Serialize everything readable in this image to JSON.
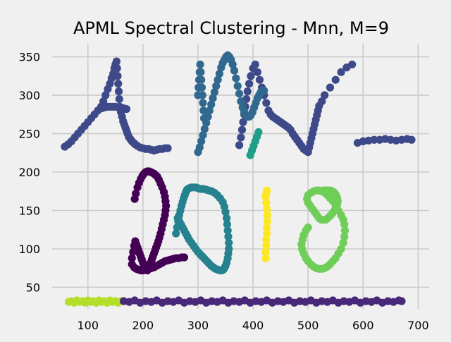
{
  "chart_data": {
    "type": "scatter",
    "title": "APML Spectral Clustering - Mnn, M=9",
    "xlabel": "",
    "ylabel": "",
    "xlim": [
      35,
      720
    ],
    "ylim": [
      22,
      367
    ],
    "xticks": [
      100,
      200,
      300,
      400,
      500,
      600,
      700
    ],
    "yticks": [
      50,
      100,
      150,
      200,
      250,
      300,
      350
    ],
    "grid": true,
    "colors": {
      "background": "#f0f0f0",
      "grid": "#cbcbcb",
      "c0": "#440154",
      "c1": "#482878",
      "c2": "#3e4989",
      "c3": "#31688e",
      "c4": "#26828e",
      "c5": "#1f9e89",
      "c6": "#35b779",
      "c7": "#6ece58",
      "c8": "#b5de2b",
      "c9": "#fde725"
    },
    "clusters": [
      {
        "label": "c2",
        "color": "#3e4989",
        "x": [
          58,
          64,
          70,
          76,
          82,
          88,
          94,
          100,
          106,
          112,
          118,
          124,
          128,
          132,
          136,
          140,
          143,
          146,
          148,
          150,
          152,
          153,
          154,
          155,
          156,
          157,
          158,
          160,
          162,
          164,
          166,
          168,
          170,
          172,
          174,
          177,
          180,
          183,
          186,
          190,
          195,
          200,
          205,
          210,
          215,
          220,
          225,
          230,
          235,
          240,
          245,
          125,
          130,
          135,
          140,
          145,
          150,
          155,
          160,
          165,
          170,
          375,
          378,
          380,
          382,
          384,
          386,
          388,
          390,
          393,
          396,
          400,
          404,
          408,
          412,
          416,
          420,
          424,
          428,
          432,
          436,
          440,
          444,
          448,
          452,
          456,
          460,
          464,
          468,
          472,
          476,
          480,
          484,
          488,
          492,
          496,
          500,
          502,
          504,
          506,
          508,
          510,
          512,
          514,
          516,
          518,
          520,
          525,
          530,
          540,
          550,
          560,
          570,
          580,
          590,
          600,
          610,
          620,
          630,
          640,
          650,
          660,
          670,
          680,
          688
        ],
        "y": [
          233,
          236,
          240,
          245,
          250,
          255,
          260,
          265,
          270,
          275,
          280,
          285,
          292,
          300,
          308,
          315,
          322,
          328,
          335,
          340,
          344,
          335,
          325,
          315,
          305,
          295,
          285,
          278,
          272,
          266,
          262,
          258,
          254,
          250,
          246,
          243,
          240,
          238,
          236,
          234,
          232,
          231,
          230,
          230,
          229,
          228,
          229,
          230,
          230,
          231,
          231,
          283,
          284,
          285,
          285,
          285,
          285,
          284,
          283,
          283,
          282,
          235,
          245,
          255,
          265,
          275,
          285,
          295,
          305,
          315,
          325,
          335,
          340,
          330,
          320,
          310,
          300,
          290,
          280,
          275,
          272,
          270,
          268,
          266,
          264,
          262,
          260,
          258,
          255,
          250,
          246,
          242,
          238,
          234,
          230,
          228,
          226,
          232,
          238,
          244,
          250,
          256,
          262,
          268,
          274,
          280,
          286,
          292,
          300,
          310,
          320,
          330,
          336,
          340,
          238,
          240,
          241,
          242,
          242,
          243,
          242,
          241,
          242,
          243,
          242
        ]
      },
      {
        "label": "c3",
        "color": "#31688e",
        "x": [
          300,
          303,
          306,
          309,
          312,
          315,
          318,
          321,
          324,
          327,
          330,
          333,
          336,
          339,
          342,
          345,
          348,
          351,
          354,
          357,
          360,
          363,
          366,
          369,
          372,
          375,
          378,
          381,
          384,
          387,
          390,
          393,
          396,
          399,
          402,
          405,
          408,
          411,
          414,
          417,
          420,
          300,
          301,
          302,
          303,
          304,
          305,
          306,
          307,
          308,
          309,
          310,
          311
        ],
        "y": [
          226,
          232,
          240,
          248,
          256,
          264,
          272,
          280,
          288,
          296,
          304,
          312,
          320,
          328,
          336,
          342,
          346,
          350,
          352,
          350,
          346,
          340,
          332,
          322,
          312,
          302,
          292,
          284,
          278,
          274,
          272,
          272,
          274,
          278,
          284,
          290,
          296,
          300,
          304,
          306,
          306,
          300,
          310,
          320,
          330,
          340,
          330,
          320,
          310,
          300,
          290,
          280,
          270
        ]
      },
      {
        "label": "c0",
        "color": "#440154",
        "x": [
          185,
          187,
          190,
          193,
          196,
          199,
          202,
          205,
          208,
          211,
          214,
          217,
          220,
          223,
          226,
          229,
          232,
          235,
          238,
          240,
          241,
          242,
          241,
          240,
          238,
          236,
          234,
          232,
          230,
          228,
          226,
          224,
          222,
          220,
          218,
          216,
          214,
          212,
          210,
          208,
          206,
          204,
          202,
          200,
          198,
          196,
          194,
          192,
          190,
          188,
          186,
          184,
          182,
          180,
          180,
          184,
          188,
          192,
          196,
          200,
          205,
          210,
          215,
          220,
          225,
          230,
          235,
          240,
          245,
          250,
          255,
          260,
          265,
          270,
          275
        ],
        "y": [
          165,
          172,
          180,
          186,
          191,
          195,
          198,
          200,
          201,
          201,
          200,
          199,
          198,
          196,
          194,
          190,
          185,
          180,
          174,
          168,
          162,
          156,
          150,
          144,
          138,
          132,
          126,
          120,
          115,
          110,
          106,
          102,
          98,
          94,
          90,
          86,
          82,
          78,
          74,
          72,
          74,
          76,
          78,
          82,
          86,
          90,
          94,
          98,
          102,
          106,
          110,
          104,
          96,
          88,
          80,
          76,
          74,
          73,
          72,
          72,
          73,
          74,
          75,
          76,
          78,
          80,
          82,
          84,
          85,
          86,
          87,
          88,
          88,
          89,
          89
        ]
      },
      {
        "label": "c4",
        "color": "#26828e",
        "x": [
          260,
          262,
          264,
          266,
          268,
          270,
          272,
          274,
          276,
          278,
          280,
          284,
          288,
          292,
          296,
          300,
          305,
          310,
          315,
          320,
          325,
          330,
          335,
          340,
          345,
          348,
          350,
          352,
          353,
          354,
          355,
          356,
          356,
          355,
          354,
          352,
          350,
          348,
          346,
          343,
          340,
          336,
          332,
          328,
          324,
          320,
          316,
          312,
          308,
          304,
          300,
          296,
          292,
          288,
          284,
          281,
          278,
          275,
          272,
          269,
          266,
          263
        ],
        "y": [
          120,
          128,
          136,
          144,
          150,
          156,
          161,
          166,
          170,
          174,
          177,
          179,
          180,
          180,
          180,
          179,
          178,
          178,
          177,
          176,
          175,
          173,
          170,
          166,
          161,
          155,
          148,
          140,
          132,
          124,
          116,
          108,
          100,
          94,
          88,
          82,
          78,
          75,
          73,
          72,
          72,
          73,
          74,
          76,
          78,
          81,
          84,
          87,
          90,
          93,
          96,
          100,
          104,
          108,
          112,
          116,
          120,
          124,
          128,
          132,
          136,
          140
        ]
      },
      {
        "label": "c5",
        "color": "#1f9e89",
        "x": [
          395,
          398,
          401,
          404,
          407,
          410
        ],
        "y": [
          222,
          228,
          234,
          240,
          246,
          252
        ]
      },
      {
        "label": "c9",
        "color": "#fde725",
        "x": [
          423,
          423,
          424,
          424,
          425,
          425,
          426,
          426,
          425,
          424,
          423,
          424,
          425
        ],
        "y": [
          88,
          96,
          104,
          112,
          120,
          128,
          136,
          144,
          152,
          160,
          168,
          172,
          176
        ]
      },
      {
        "label": "c7",
        "color": "#6ece58",
        "x": [
          500,
          496,
          492,
          490,
          488,
          489,
          492,
          496,
          500,
          505,
          510,
          515,
          520,
          525,
          530,
          535,
          540,
          545,
          550,
          555,
          560,
          564,
          566,
          567,
          566,
          564,
          560,
          555,
          550,
          545,
          540,
          535,
          530,
          525,
          520,
          515,
          510,
          505,
          500,
          498,
          500,
          504,
          508,
          512,
          516,
          520,
          524,
          528,
          532,
          536,
          540,
          544,
          548,
          551,
          553,
          554,
          553,
          551,
          548,
          544,
          540,
          536,
          532,
          528
        ],
        "y": [
          128,
          124,
          118,
          112,
          106,
          100,
          94,
          88,
          84,
          80,
          77,
          75,
          74,
          74,
          75,
          77,
          80,
          84,
          88,
          94,
          100,
          108,
          116,
          124,
          132,
          138,
          144,
          150,
          156,
          162,
          166,
          170,
          173,
          175,
          176,
          176,
          175,
          173,
          170,
          165,
          160,
          156,
          152,
          148,
          144,
          140,
          138,
          138,
          138,
          140,
          143,
          146,
          150,
          154,
          158,
          162,
          166,
          170,
          173,
          175,
          176,
          176,
          176,
          176
        ]
      },
      {
        "label": "c8",
        "color": "#b5de2b",
        "x": [
          65,
          70,
          75,
          80,
          85,
          90,
          95,
          100,
          105,
          110,
          115,
          120,
          125,
          130,
          135,
          140,
          145,
          150,
          155,
          160
        ],
        "y": [
          31,
          32,
          30,
          33,
          31,
          32,
          30,
          33,
          31,
          32,
          30,
          33,
          31,
          32,
          30,
          33,
          31,
          32,
          30,
          32
        ]
      },
      {
        "label": "c1",
        "color": "#482878",
        "x": [
          165,
          175,
          185,
          195,
          205,
          215,
          225,
          235,
          245,
          255,
          265,
          275,
          285,
          295,
          305,
          315,
          325,
          335,
          345,
          355,
          365,
          375,
          385,
          395,
          405,
          415,
          425,
          435,
          445,
          455,
          465,
          475,
          485,
          495,
          505,
          515,
          525,
          535,
          545,
          555,
          565,
          575,
          585,
          595,
          605,
          615,
          625,
          635,
          645,
          655,
          665,
          670
        ],
        "y": [
          32,
          31,
          33,
          30,
          32,
          31,
          33,
          30,
          32,
          31,
          33,
          30,
          32,
          31,
          33,
          30,
          32,
          31,
          33,
          30,
          32,
          31,
          33,
          30,
          32,
          31,
          33,
          30,
          32,
          31,
          33,
          30,
          32,
          31,
          33,
          30,
          32,
          31,
          33,
          30,
          32,
          31,
          33,
          30,
          32,
          31,
          33,
          30,
          32,
          31,
          33,
          32
        ]
      }
    ]
  }
}
